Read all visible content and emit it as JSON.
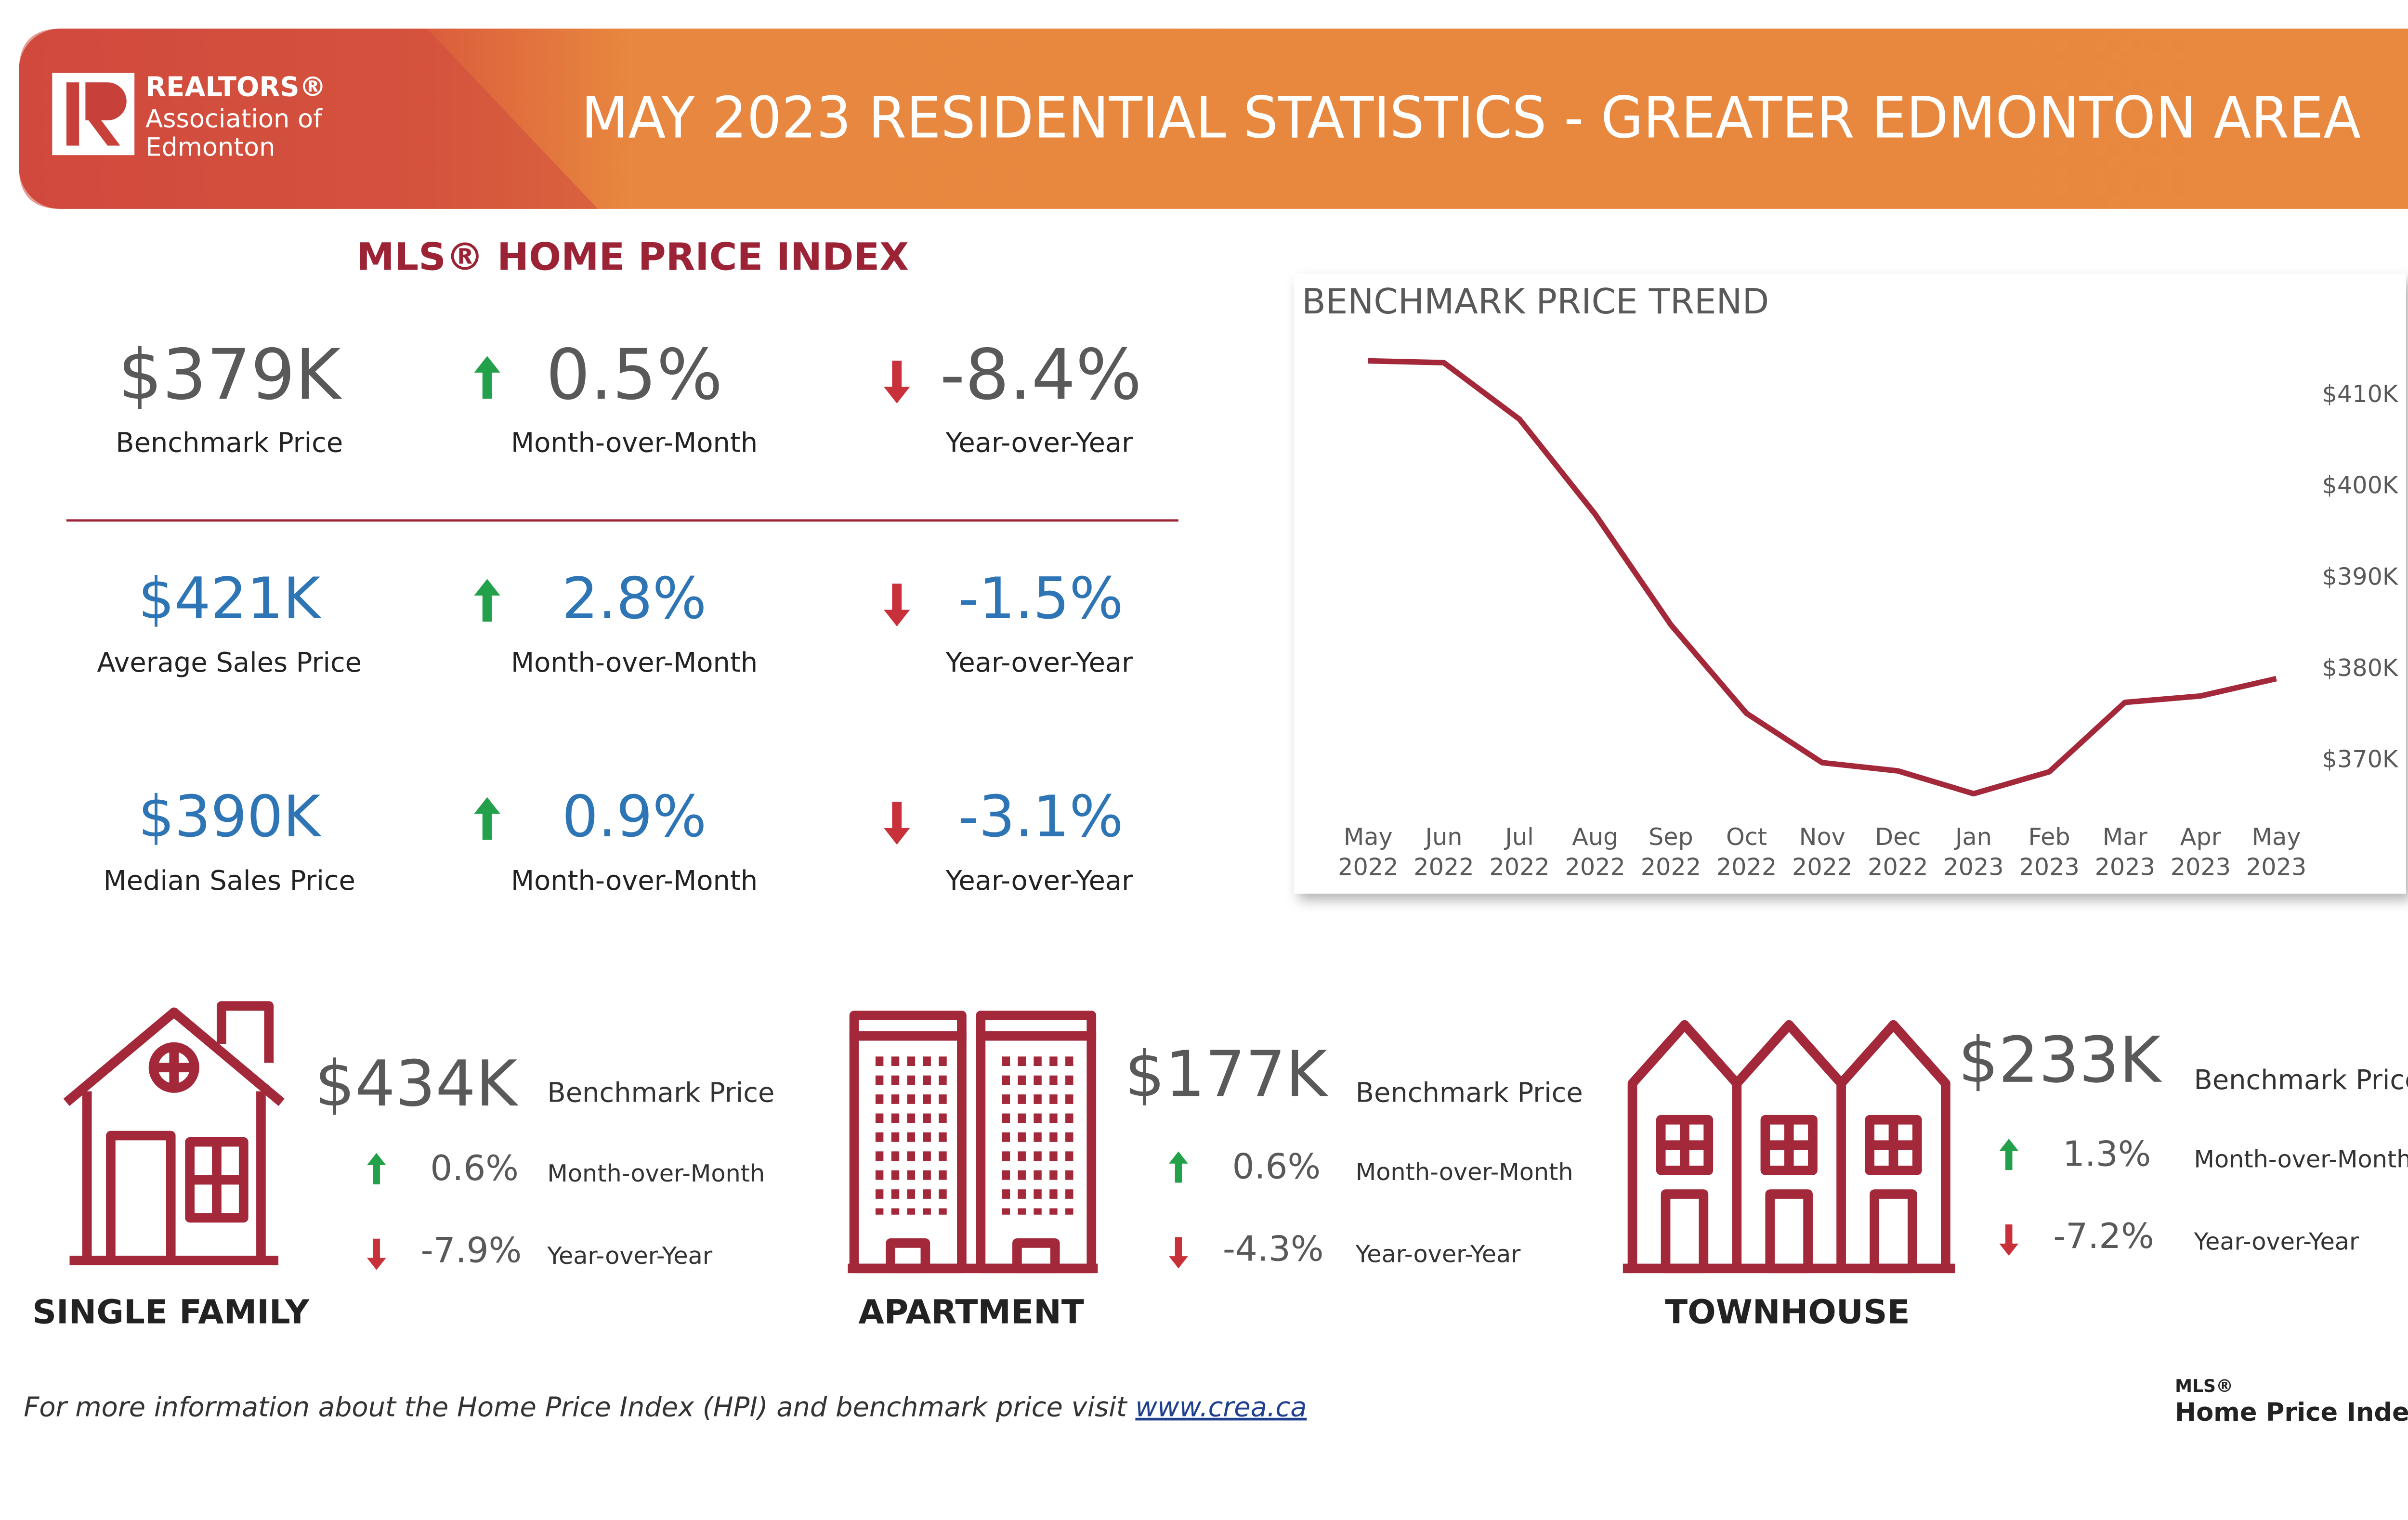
{
  "header": {
    "logo_lines": [
      "REALTORS®",
      "Association of",
      "Edmonton"
    ],
    "title": "MAY 2023 RESIDENTIAL STATISTICS - GREATER EDMONTON AREA"
  },
  "hpi": {
    "title": "MLS® HOME PRICE INDEX",
    "rows": [
      {
        "value": "$379K",
        "label": "Benchmark Price",
        "mom": "0.5%",
        "mom_label": "Month-over-Month",
        "yoy": "-8.4%",
        "yoy_label": "Year-over-Year"
      },
      {
        "value": "$421K",
        "label": "Average Sales Price",
        "mom": "2.8%",
        "mom_label": "Month-over-Month",
        "yoy": "-1.5%",
        "yoy_label": "Year-over-Year"
      },
      {
        "value": "$390K",
        "label": "Median Sales Price",
        "mom": "0.9%",
        "mom_label": "Month-over-Month",
        "yoy": "-3.1%",
        "yoy_label": "Year-over-Year"
      }
    ]
  },
  "chart_data": {
    "type": "line",
    "title": "BENCHMARK PRICE TREND",
    "categories": [
      "May 2022",
      "Jun 2022",
      "Jul 2022",
      "Aug 2022",
      "Sep 2022",
      "Oct 2022",
      "Nov 2022",
      "Dec 2022",
      "Jan 2023",
      "Feb 2023",
      "Mar 2023",
      "Apr 2023",
      "May 2023"
    ],
    "values": [
      413800,
      413600,
      407400,
      397000,
      384900,
      375200,
      369800,
      368900,
      366400,
      368800,
      376400,
      377100,
      379000
    ],
    "color": "#a3283a",
    "ylim": [
      365000,
      417000
    ],
    "yticks": [
      {
        "value": 370000,
        "label": "$370K"
      },
      {
        "value": 380000,
        "label": "$380K"
      },
      {
        "value": 390000,
        "label": "$390K"
      },
      {
        "value": 400000,
        "label": "$400K"
      },
      {
        "value": 410000,
        "label": "$410K"
      }
    ],
    "grid": false
  },
  "property_types": [
    {
      "name": "SINGLE FAMILY",
      "value": "$434K",
      "label": "Benchmark Price",
      "mom": "0.6%",
      "mom_label": "Month-over-Month",
      "yoy": "-7.9%",
      "yoy_label": "Year-over-Year"
    },
    {
      "name": "APARTMENT",
      "value": "$177K",
      "label": "Benchmark Price",
      "mom": "0.6%",
      "mom_label": "Month-over-Month",
      "yoy": "-4.3%",
      "yoy_label": "Year-over-Year"
    },
    {
      "name": "TOWNHOUSE",
      "value": "$233K",
      "label": "Benchmark Price",
      "mom": "1.3%",
      "mom_label": "Month-over-Month",
      "yoy": "-7.2%",
      "yoy_label": "Year-over-Year"
    }
  ],
  "footer": {
    "text": "For more information about the Home Price Index (HPI) and benchmark price visit ",
    "link": "www.crea.ca",
    "logo_top": "MLS®",
    "logo_bottom": "Home Price Index"
  }
}
